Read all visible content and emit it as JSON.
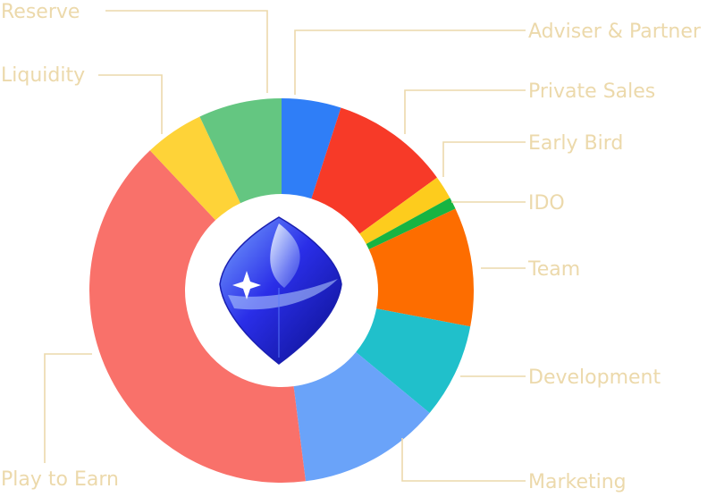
{
  "chart_data": {
    "type": "pie",
    "style": "donut",
    "title": "",
    "categories": [
      "Adviser & Partner",
      "Private Sales",
      "Early Bird",
      "IDO",
      "Team",
      "Development",
      "Marketing",
      "Play to Earn",
      "Liquidity",
      "Reserve"
    ],
    "values": [
      5,
      10,
      2,
      1,
      10,
      8,
      12,
      40,
      5,
      7
    ],
    "unit": "%",
    "colors": [
      "#2f7ef7",
      "#f73a28",
      "#fdcc1d",
      "#17b442",
      "#fd6d00",
      "#20c0cb",
      "#6aa3f9",
      "#f9716a",
      "#fed338",
      "#64c681"
    ],
    "label_color": "#ecd9ab",
    "center_icon": "crystal-gem-logo"
  }
}
